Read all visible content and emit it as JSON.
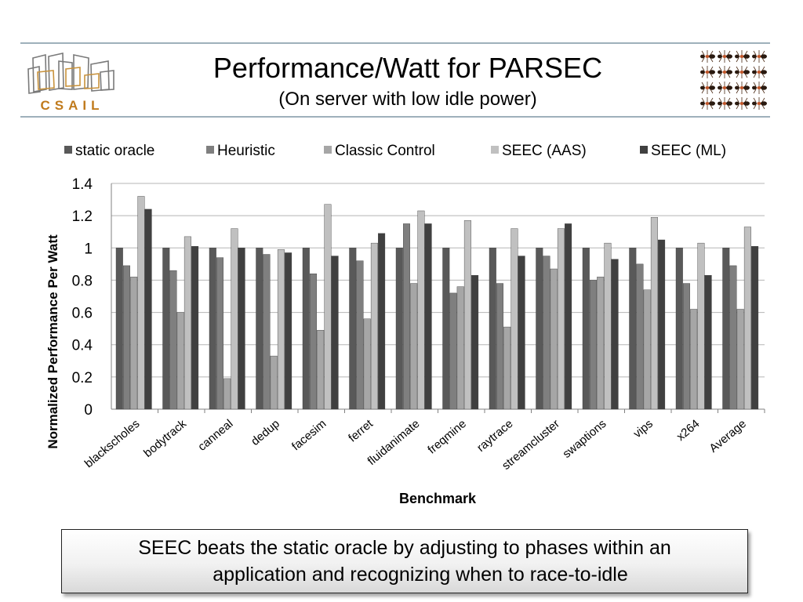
{
  "slide": {
    "title": "Performance/Watt for PARSEC",
    "subtitle": "(On server with low idle power)",
    "left_logo": {
      "icon": "csail-logo-icon",
      "text": "CSAIL"
    },
    "right_logo": {
      "icon": "ants-grid-icon"
    },
    "callout": {
      "line1": "SEEC beats the static oracle by adjusting to phases within an",
      "line2": "application and recognizing when to race-to-idle"
    }
  },
  "chart_data": {
    "type": "bar",
    "title": "",
    "xlabel": "Benchmark",
    "ylabel": "Normalized Performance Per Watt",
    "ylim": [
      0,
      1.4
    ],
    "yticks": [
      0,
      0.2,
      0.4,
      0.6,
      0.8,
      1,
      1.2,
      1.4
    ],
    "grid": true,
    "legend": "top",
    "categories": [
      "blackscholes",
      "bodytrack",
      "canneal",
      "dedup",
      "facesim",
      "ferret",
      "fluidanimate",
      "freqmine",
      "raytrace",
      "streamcluster",
      "swaptions",
      "vips",
      "x264",
      "Average"
    ],
    "series": [
      {
        "name": "static oracle",
        "color": "#595959",
        "values": [
          1,
          1,
          1,
          1,
          1,
          1,
          1,
          1,
          1,
          1,
          1,
          1,
          1,
          1
        ]
      },
      {
        "name": "Heuristic",
        "color": "#7f7f7f",
        "values": [
          0.89,
          0.86,
          0.94,
          0.96,
          0.84,
          0.92,
          1.15,
          0.72,
          0.78,
          0.95,
          0.8,
          0.9,
          0.78,
          0.89
        ]
      },
      {
        "name": "Classic Control",
        "color": "#a6a6a6",
        "values": [
          0.82,
          0.6,
          0.19,
          0.33,
          0.49,
          0.56,
          0.78,
          0.76,
          0.51,
          0.87,
          0.82,
          0.74,
          0.62,
          0.62
        ]
      },
      {
        "name": "SEEC (AAS)",
        "color": "#c0c0c0",
        "values": [
          1.32,
          1.07,
          1.12,
          0.99,
          1.27,
          1.03,
          1.23,
          1.17,
          1.12,
          1.12,
          1.03,
          1.19,
          1.03,
          1.13
        ]
      },
      {
        "name": "SEEC (ML)",
        "color": "#404040",
        "values": [
          1.24,
          1.01,
          1.0,
          0.97,
          0.95,
          1.09,
          1.15,
          0.83,
          0.95,
          1.15,
          0.93,
          1.05,
          0.83,
          1.01
        ]
      }
    ]
  }
}
